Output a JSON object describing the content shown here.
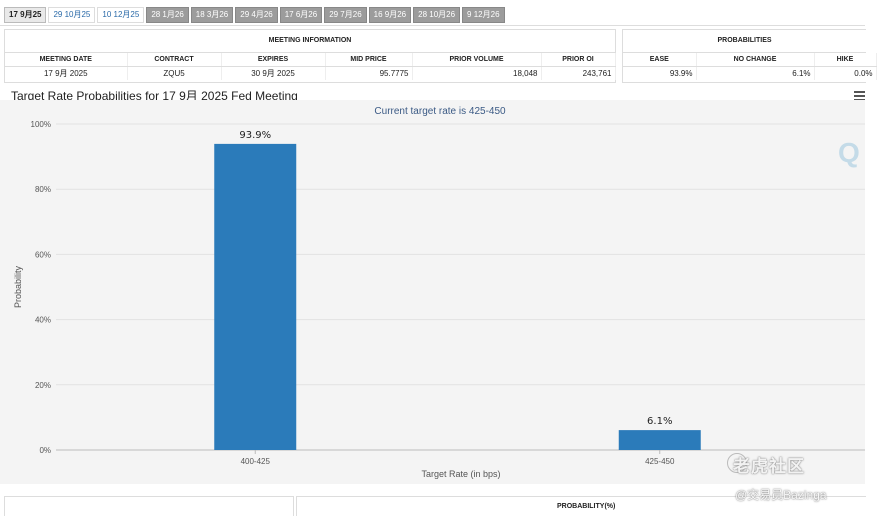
{
  "tabs": [
    {
      "label": "17 9月25",
      "state": "active"
    },
    {
      "label": "29 10月25",
      "state": "light"
    },
    {
      "label": "10 12月25",
      "state": "light"
    },
    {
      "label": "28 1月26",
      "state": "dark"
    },
    {
      "label": "18 3月26",
      "state": "dark"
    },
    {
      "label": "29 4月26",
      "state": "dark"
    },
    {
      "label": "17 6月26",
      "state": "dark"
    },
    {
      "label": "29 7月26",
      "state": "dark"
    },
    {
      "label": "16 9月26",
      "state": "dark"
    },
    {
      "label": "28 10月26",
      "state": "dark"
    },
    {
      "label": "9 12月26",
      "state": "dark"
    }
  ],
  "meeting_info": {
    "header": "MEETING INFORMATION",
    "columns": [
      "MEETING DATE",
      "CONTRACT",
      "EXPIRES",
      "MID PRICE",
      "PRIOR VOLUME",
      "PRIOR OI"
    ],
    "row": [
      "17 9月 2025",
      "ZQU5",
      "30 9月 2025",
      "95.7775",
      "18,048",
      "243,761"
    ]
  },
  "probabilities": {
    "header": "PROBABILITIES",
    "columns": [
      "EASE",
      "NO CHANGE",
      "HIKE"
    ],
    "row": [
      "93.9%",
      "6.1%",
      "0.0%"
    ]
  },
  "chart_title": "Target Rate Probabilities for 17 9月 2025 Fed Meeting",
  "chart_data": {
    "type": "bar",
    "title": "Target Rate Probabilities for 17 9月 2025 Fed Meeting",
    "subtitle": "Current target rate is 425-450",
    "categories": [
      "400-425",
      "425-450"
    ],
    "values": [
      93.9,
      6.1
    ],
    "value_labels": [
      "93.9%",
      "6.1%"
    ],
    "xlabel": "Target Rate (in bps)",
    "ylabel": "Probability",
    "ylim": [
      0,
      100
    ],
    "yticks": [
      "0%",
      "20%",
      "40%",
      "60%",
      "80%",
      "100%"
    ],
    "ytick_values": [
      0,
      20,
      40,
      60,
      80,
      100
    ],
    "bar_color": "#2b7bba",
    "plot_bg": "#f4f4f4",
    "grid": true
  },
  "bottom_table": {
    "header": "PROBABILITY(%)"
  },
  "watermark": {
    "line1": "老虎社区",
    "line2": "@交易员Bazinga",
    "logo": "Q"
  }
}
